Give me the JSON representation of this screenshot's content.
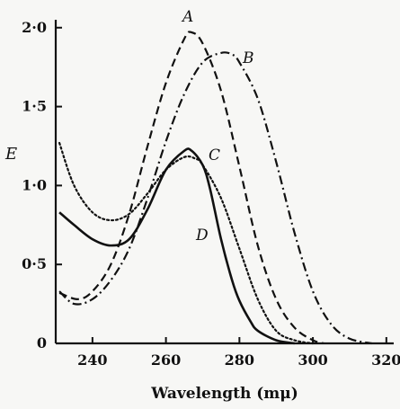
{
  "chart_data": {
    "type": "line",
    "title": "",
    "xlabel": "Wavelength (mμ)",
    "ylabel": "E",
    "xlim": [
      230,
      322
    ],
    "ylim": [
      0,
      2.05
    ],
    "x_ticks": [
      240,
      260,
      280,
      300,
      320
    ],
    "x_tick_labels": [
      "240",
      "260",
      "280",
      "300",
      "320"
    ],
    "y_ticks": [
      0,
      0.5,
      1.0,
      1.5,
      2.0
    ],
    "y_tick_labels": [
      "0",
      "0·5",
      "1·0",
      "1·5",
      "2·0"
    ],
    "grid": false,
    "series": [
      {
        "name": "A",
        "style": "dashed",
        "x": [
          231,
          236,
          240,
          245,
          250,
          255,
          260,
          265,
          267,
          270,
          275,
          280,
          285,
          290,
          295,
          300,
          303
        ],
        "y": [
          0.32,
          0.28,
          0.33,
          0.5,
          0.82,
          1.25,
          1.65,
          1.93,
          1.97,
          1.9,
          1.6,
          1.12,
          0.62,
          0.28,
          0.1,
          0.02,
          0
        ]
      },
      {
        "name": "B",
        "style": "dash-dot",
        "x": [
          231,
          235,
          240,
          245,
          250,
          255,
          260,
          265,
          270,
          275,
          278,
          280,
          285,
          290,
          295,
          300,
          305,
          310,
          316
        ],
        "y": [
          0.33,
          0.25,
          0.28,
          0.4,
          0.6,
          0.92,
          1.28,
          1.58,
          1.78,
          1.84,
          1.83,
          1.78,
          1.55,
          1.15,
          0.7,
          0.33,
          0.12,
          0.03,
          0
        ]
      },
      {
        "name": "C",
        "style": "dotted",
        "x": [
          231,
          235,
          240,
          245,
          250,
          255,
          260,
          265,
          268,
          270,
          275,
          280,
          285,
          290,
          295,
          300
        ],
        "y": [
          1.27,
          1.0,
          0.83,
          0.78,
          0.82,
          0.95,
          1.1,
          1.18,
          1.17,
          1.13,
          0.92,
          0.6,
          0.28,
          0.08,
          0.02,
          0
        ]
      },
      {
        "name": "D",
        "style": "solid",
        "x": [
          231,
          235,
          240,
          245,
          250,
          255,
          260,
          265,
          267,
          270,
          272,
          275,
          278,
          280,
          283,
          285,
          290,
          295
        ],
        "y": [
          0.83,
          0.75,
          0.66,
          0.62,
          0.66,
          0.85,
          1.1,
          1.22,
          1.22,
          1.13,
          0.98,
          0.66,
          0.4,
          0.27,
          0.14,
          0.08,
          0.02,
          0
        ]
      }
    ]
  }
}
